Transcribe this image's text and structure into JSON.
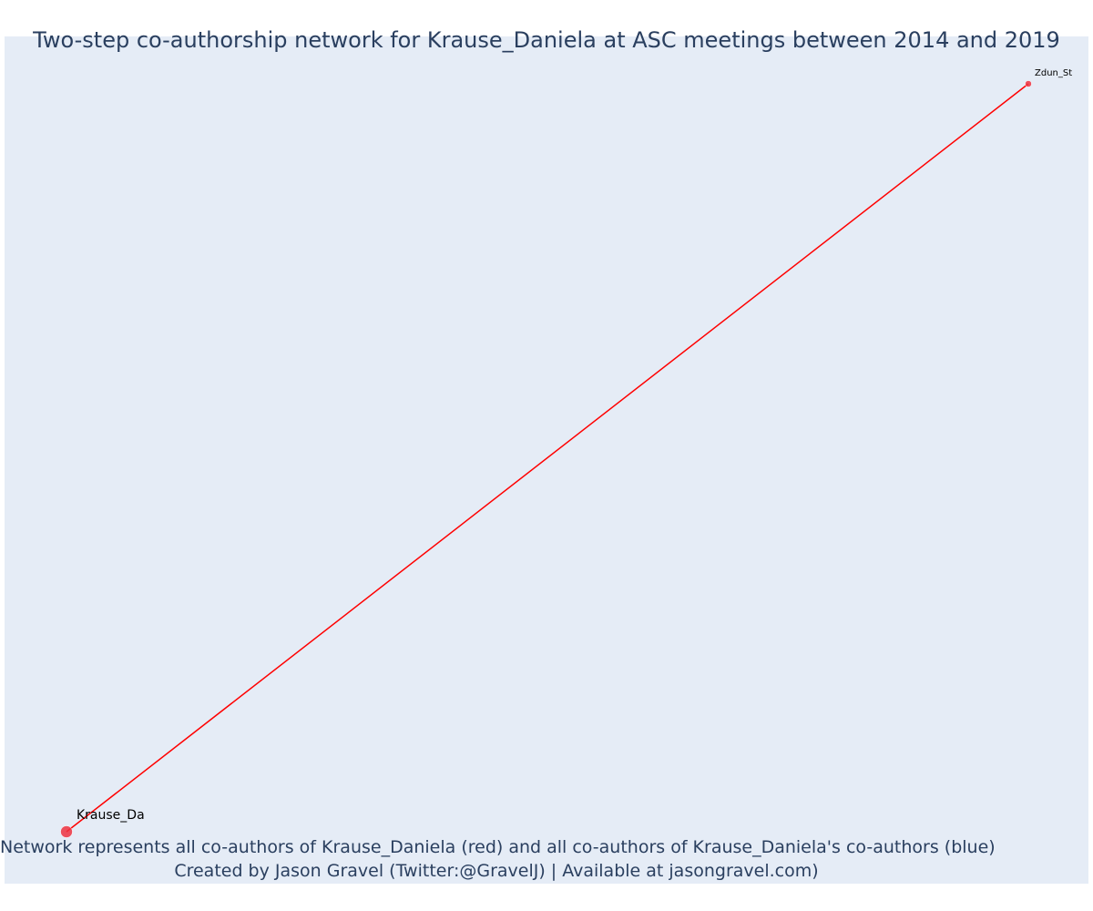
{
  "title": "Two-step co-authorship network for Krause_Daniela at ASC meetings between 2014 and 2019",
  "caption": {
    "line1": "Network represents all co-authors of Krause_Daniela (red) and all co-authors of Krause_Daniela's co-authors (blue)",
    "line2": "Created by Jason Gravel (Twitter:@GravelJ) | Available at jasongravel.com)"
  },
  "colors": {
    "background": "#e5ecf6",
    "edge": "#ff0000",
    "node_red": "#ef3340",
    "text": "#2a3f5f"
  },
  "network": {
    "nodes": [
      {
        "id": "krause",
        "label": "Krause_Da",
        "group": "red",
        "role": "focal"
      },
      {
        "id": "zdun",
        "label": "Zdun_St",
        "group": "red",
        "role": "co-author"
      }
    ],
    "edges": [
      {
        "source": "krause",
        "target": "zdun"
      }
    ]
  }
}
